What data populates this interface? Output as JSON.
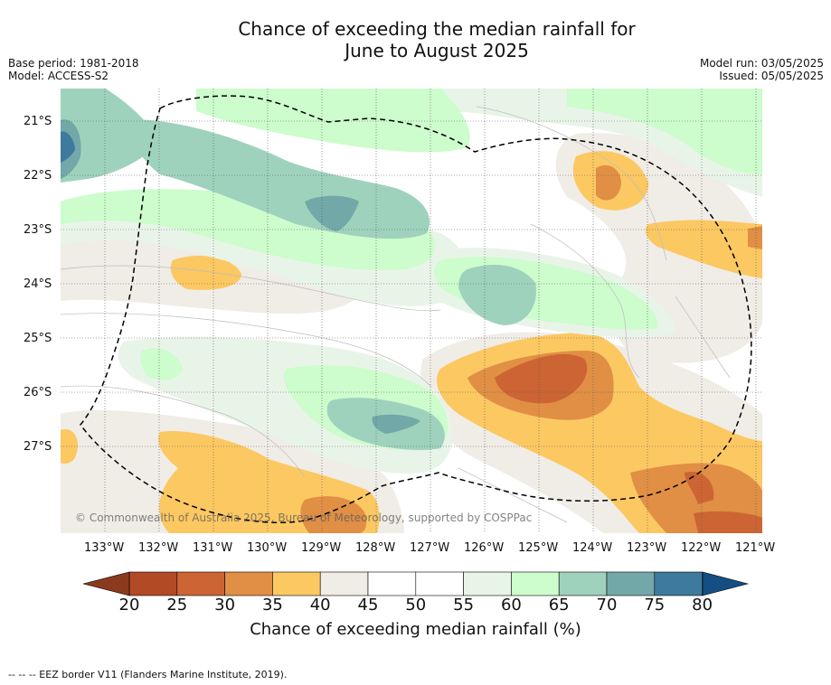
{
  "header": {
    "title_line1": "Chance of exceeding the median rainfall for",
    "title_line2": "June to August 2025"
  },
  "meta_left": {
    "base_period": "Base period: 1981-2018",
    "model": "Model: ACCESS-S2"
  },
  "meta_right": {
    "model_run": "Model run: 03/05/2025",
    "issued": "Issued: 05/05/2025"
  },
  "map": {
    "lat_labels": [
      "21°S",
      "22°S",
      "23°S",
      "24°S",
      "25°S",
      "26°S",
      "27°S"
    ],
    "lon_labels": [
      "133°W",
      "132°W",
      "131°W",
      "130°W",
      "129°W",
      "128°W",
      "127°W",
      "126°W",
      "125°W",
      "124°W",
      "123°W",
      "122°W",
      "121°W"
    ],
    "copyright": "© Commonwealth of Australia 2025, Bureau of Meteorology, supported by COSPPac"
  },
  "colorbar": {
    "ticks": [
      "20",
      "25",
      "30",
      "35",
      "40",
      "45",
      "50",
      "55",
      "60",
      "65",
      "70",
      "75",
      "80"
    ],
    "title": "Chance of exceeding median rainfall (%)",
    "colors": [
      "#8c3a1e",
      "#b24a26",
      "#cc6533",
      "#e08f45",
      "#fcc862",
      "#f0ece6",
      "#ffffff",
      "#ffffff",
      "#e9f4e8",
      "#cdfccd",
      "#9fd2bd",
      "#72a8a8",
      "#3e7a9e",
      "#144e82"
    ]
  },
  "footer": {
    "legend_note": "-- -- -- EEZ border V11 (Flanders Marine Institute, 2019)."
  }
}
